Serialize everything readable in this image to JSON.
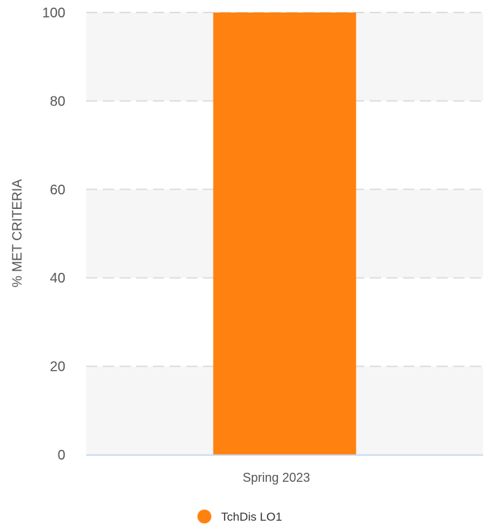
{
  "chart_data": {
    "type": "bar",
    "categories": [
      "Spring 2023"
    ],
    "series": [
      {
        "name": "TchDis LO1",
        "values": [
          100
        ],
        "color": "#ff8210"
      }
    ],
    "ylabel": "% MET CRITERIA",
    "xlabel": "",
    "ylim": [
      0,
      100
    ],
    "yticks": [
      0,
      20,
      40,
      60,
      80,
      100
    ],
    "ytick_labels": [
      "0",
      "20",
      "40",
      "60",
      "80",
      "100"
    ],
    "grid": true,
    "legend_position": "bottom-center",
    "band_color": "#f6f6f6",
    "grid_color": "#dddddd",
    "axis_color": "#c9d6f0",
    "text_color": "#555555"
  }
}
